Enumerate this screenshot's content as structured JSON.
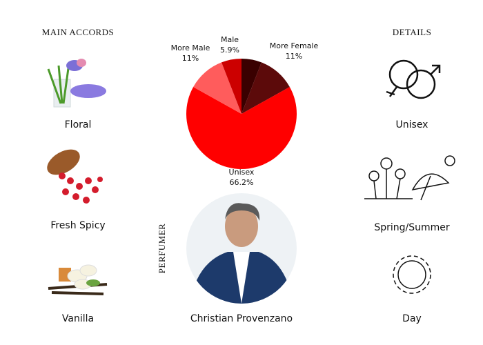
{
  "accords": {
    "title": "MAIN ACCORDS",
    "items": [
      "Floral",
      "Fresh Spicy",
      "Vanilla"
    ]
  },
  "chart_data": {
    "type": "pie",
    "categories": [
      null,
      "More Female",
      "Unisex",
      "More Male",
      "Male"
    ],
    "values": [
      5.9,
      11,
      66.2,
      11,
      5.9
    ],
    "value_labels": [
      null,
      "11%",
      "66.2%",
      "11%",
      "5.9%"
    ],
    "colors": [
      "#3a0000",
      "#5c0a0a",
      "#ff0000",
      "#ff5c5c",
      "#cc0000"
    ]
  },
  "perfumer": {
    "label": "PERFUMER",
    "name": "Christian Provenzano"
  },
  "details": {
    "title": "DETAILS",
    "items": [
      "Unisex",
      "Spring/Summer",
      "Day"
    ]
  }
}
